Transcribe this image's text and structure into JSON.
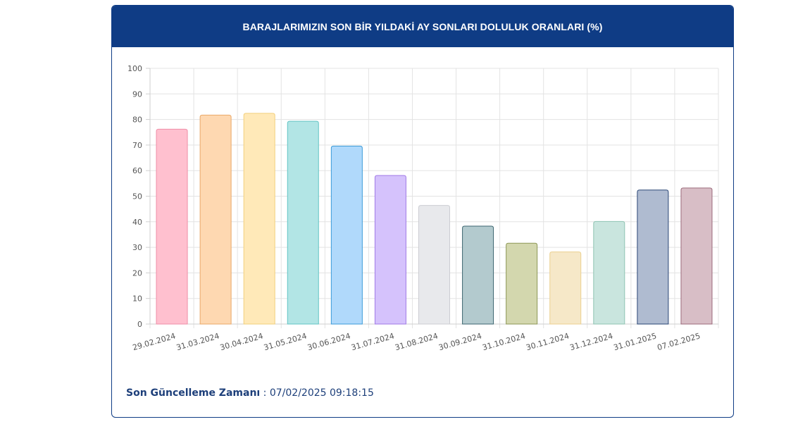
{
  "header": {
    "title": "BARAJLARIMIZIN SON BİR YILDAKİ AY SONLARI DOLULUK ORANLARI (%)"
  },
  "footer": {
    "label": "Son Güncelleme Zamanı",
    "separator": " : ",
    "value": "07/02/2025 09:18:15"
  },
  "chart_data": {
    "type": "bar",
    "title": "",
    "xlabel": "",
    "ylabel": "",
    "ylim": [
      0,
      100
    ],
    "yticks": [
      0,
      10,
      20,
      30,
      40,
      50,
      60,
      70,
      80,
      90,
      100
    ],
    "grid": true,
    "legend": "none",
    "categories": [
      "29.02.2024",
      "31.03.2024",
      "30.04.2024",
      "31.05.2024",
      "30.06.2024",
      "31.07.2024",
      "31.08.2024",
      "30.09.2024",
      "31.10.2024",
      "30.11.2024",
      "31.12.2024",
      "31.01.2025",
      "07.02.2025"
    ],
    "values": [
      76.2,
      81.7,
      82.4,
      79.3,
      69.6,
      58.1,
      46.4,
      38.3,
      31.6,
      28.2,
      40.1,
      52.4,
      53.2
    ],
    "fill_colors": [
      "#ffc0cf",
      "#fed8b1",
      "#ffe9b8",
      "#b2e5e5",
      "#b0d9fb",
      "#d5c2fc",
      "#e8e9ec",
      "#b3cace",
      "#d3d7ae",
      "#f6e8c8",
      "#c9e5de",
      "#afbbd0",
      "#d8bec6"
    ],
    "border_colors": [
      "#ef8ea7",
      "#eaa868",
      "#f2cf7b",
      "#62c4c4",
      "#3a9ad8",
      "#a07ae6",
      "#cccdd2",
      "#3d6670",
      "#8c9755",
      "#ecd08f",
      "#8fc3b2",
      "#2a4675",
      "#9b6a7b"
    ]
  }
}
